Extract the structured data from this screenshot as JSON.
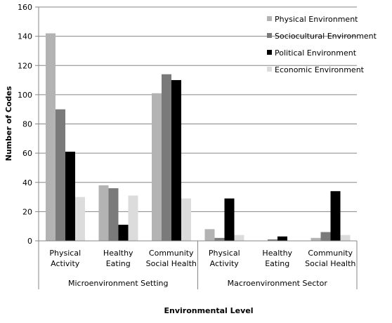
{
  "chart_data": {
    "type": "bar",
    "title": "",
    "xlabel": "Environmental Level",
    "ylabel": "Number of Codes",
    "ylim": [
      0,
      160
    ],
    "yticks": [
      0,
      20,
      40,
      60,
      80,
      100,
      120,
      140,
      160
    ],
    "grid": true,
    "legend_position": "top-right",
    "groups": [
      {
        "label": "Microenvironment Setting",
        "categories": [
          "0",
          "1",
          "2"
        ]
      },
      {
        "label": "Macroenvironment Sector",
        "categories": [
          "3",
          "4",
          "5"
        ]
      }
    ],
    "categories": [
      [
        "Physical",
        "Activity"
      ],
      [
        "Healthy",
        "Eating"
      ],
      [
        "Community",
        "Social Health"
      ],
      [
        "Physical",
        "Activity"
      ],
      [
        "Healthy",
        "Eating"
      ],
      [
        "Community",
        "Social Health"
      ]
    ],
    "series": [
      {
        "name": "Physical Environment",
        "color": "#b3b3b3",
        "values": [
          142,
          38,
          101,
          8,
          0,
          2
        ]
      },
      {
        "name": "Sociocultural Environment",
        "color": "#7a7a7a",
        "values": [
          90,
          36,
          114,
          2,
          1,
          6
        ]
      },
      {
        "name": "Political Environment",
        "color": "#000000",
        "values": [
          61,
          11,
          110,
          29,
          3,
          34
        ]
      },
      {
        "name": "Economic Environment",
        "color": "#dcdcdc",
        "values": [
          30,
          31,
          29,
          4,
          0,
          4
        ]
      }
    ]
  }
}
